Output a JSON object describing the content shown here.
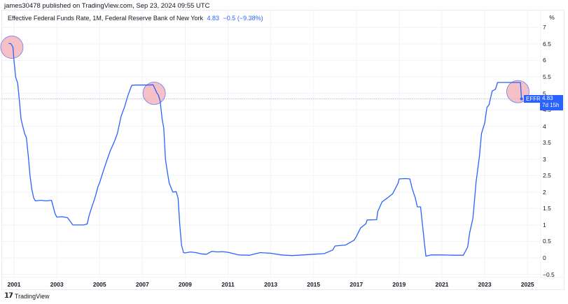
{
  "header": {
    "published": "james30478 published on TradingView.com, Sep 23, 2024 09:55 UTC"
  },
  "legend": {
    "title": "Effective Federal Funds Rate, 1M, Federal Reserve Bank of New York",
    "value": "4.83",
    "change": "−0.5 (−9.38%)"
  },
  "price_axis": {
    "unit_label": "%",
    "ticks": [
      "7",
      "6.5",
      "6",
      "5.5",
      "5",
      "4.5",
      "4",
      "3.5",
      "3",
      "2.5",
      "2",
      "1.5",
      "1",
      "0.5",
      "0",
      "−0.5"
    ]
  },
  "time_axis": {
    "ticks": [
      "2001",
      "2003",
      "2005",
      "2007",
      "2009",
      "2011",
      "2013",
      "2015",
      "2017",
      "2019",
      "2021",
      "2023",
      "2025"
    ]
  },
  "last_price_tag": {
    "symbol": "EFFR",
    "value": "4.83",
    "countdown": "7d 15h"
  },
  "footer": {
    "brand": "TradingView",
    "logo_icon": "tradingview-logo-icon"
  },
  "colors": {
    "line": "#2962ff",
    "highlight_circle_fill": "#f5b5bd",
    "highlight_circle_stroke": "#6c7cf0",
    "grid": "#f0f3fa",
    "text": "#131722"
  },
  "chart_data": {
    "type": "line",
    "title": "Effective Federal Funds Rate, 1M, Federal Reserve Bank of New York",
    "xlabel": "",
    "ylabel": "%",
    "ylim": [
      -0.5,
      7
    ],
    "xlim": [
      2000.7,
      2025.3
    ],
    "grid": true,
    "legend_position": "top-left",
    "series": [
      {
        "name": "EFFR",
        "x": [
          2000.75,
          2000.85,
          2000.95,
          2001.0,
          2001.08,
          2001.17,
          2001.25,
          2001.33,
          2001.42,
          2001.5,
          2001.58,
          2001.67,
          2001.75,
          2001.83,
          2001.92,
          2002.0,
          2002.25,
          2002.5,
          2002.75,
          2002.92,
          2003.0,
          2003.25,
          2003.5,
          2003.75,
          2004.0,
          2004.25,
          2004.42,
          2004.5,
          2004.58,
          2004.67,
          2004.75,
          2004.83,
          2004.92,
          2005.0,
          2005.17,
          2005.33,
          2005.5,
          2005.67,
          2005.83,
          2006.0,
          2006.17,
          2006.33,
          2006.5,
          2006.67,
          2006.83,
          2007.0,
          2007.25,
          2007.5,
          2007.67,
          2007.75,
          2007.83,
          2007.92,
          2008.0,
          2008.08,
          2008.17,
          2008.25,
          2008.42,
          2008.58,
          2008.67,
          2008.75,
          2008.83,
          2008.92,
          2009.0,
          2009.25,
          2009.5,
          2009.75,
          2010.0,
          2010.25,
          2010.5,
          2010.75,
          2011.0,
          2011.5,
          2012.0,
          2012.5,
          2013.0,
          2013.5,
          2014.0,
          2014.5,
          2015.0,
          2015.5,
          2015.9,
          2016.0,
          2016.5,
          2016.9,
          2017.0,
          2017.2,
          2017.45,
          2017.5,
          2017.95,
          2018.0,
          2018.2,
          2018.45,
          2018.7,
          2018.95,
          2019.0,
          2019.3,
          2019.5,
          2019.6,
          2019.75,
          2019.85,
          2020.0,
          2020.15,
          2020.25,
          2020.5,
          2021.0,
          2021.5,
          2022.0,
          2022.2,
          2022.3,
          2022.45,
          2022.5,
          2022.6,
          2022.75,
          2022.85,
          2023.0,
          2023.1,
          2023.2,
          2023.35,
          2023.5,
          2023.6,
          2024.0,
          2024.5,
          2024.67,
          2024.72
        ],
        "values": [
          6.51,
          6.51,
          6.4,
          5.98,
          5.49,
          5.31,
          4.8,
          4.21,
          3.97,
          3.77,
          3.65,
          3.07,
          2.49,
          2.09,
          1.82,
          1.73,
          1.75,
          1.73,
          1.75,
          1.34,
          1.24,
          1.25,
          1.22,
          1.0,
          1.0,
          1.0,
          1.03,
          1.26,
          1.43,
          1.61,
          1.76,
          1.93,
          2.16,
          2.28,
          2.63,
          2.94,
          3.26,
          3.5,
          3.78,
          4.29,
          4.59,
          4.94,
          5.24,
          5.25,
          5.25,
          5.25,
          5.25,
          5.26,
          5.02,
          4.94,
          4.76,
          4.24,
          3.94,
          2.98,
          2.61,
          2.28,
          2.0,
          2.01,
          1.81,
          0.97,
          0.39,
          0.16,
          0.15,
          0.18,
          0.16,
          0.12,
          0.11,
          0.2,
          0.18,
          0.19,
          0.17,
          0.09,
          0.08,
          0.16,
          0.14,
          0.09,
          0.07,
          0.09,
          0.11,
          0.13,
          0.24,
          0.36,
          0.39,
          0.54,
          0.65,
          0.91,
          1.04,
          1.15,
          1.16,
          1.41,
          1.7,
          1.82,
          1.95,
          2.27,
          2.4,
          2.41,
          2.4,
          2.13,
          1.83,
          1.55,
          1.55,
          0.65,
          0.05,
          0.09,
          0.09,
          0.08,
          0.08,
          0.33,
          0.77,
          1.21,
          1.58,
          2.33,
          3.08,
          3.78,
          4.1,
          4.57,
          4.65,
          5.07,
          5.12,
          5.33,
          5.33,
          5.33,
          5.33,
          4.83
        ]
      }
    ],
    "annotations": [
      {
        "type": "circle",
        "x": 2000.9,
        "y": 6.4,
        "label": ""
      },
      {
        "type": "circle",
        "x": 2007.55,
        "y": 5.0,
        "label": ""
      },
      {
        "type": "circle",
        "x": 2024.55,
        "y": 5.05,
        "label": ""
      }
    ],
    "last_value": {
      "label": "EFFR",
      "value": 4.83,
      "countdown": "7d 15h"
    },
    "reference_line": {
      "type": "horizontal-dotted",
      "y": 4.83
    }
  }
}
